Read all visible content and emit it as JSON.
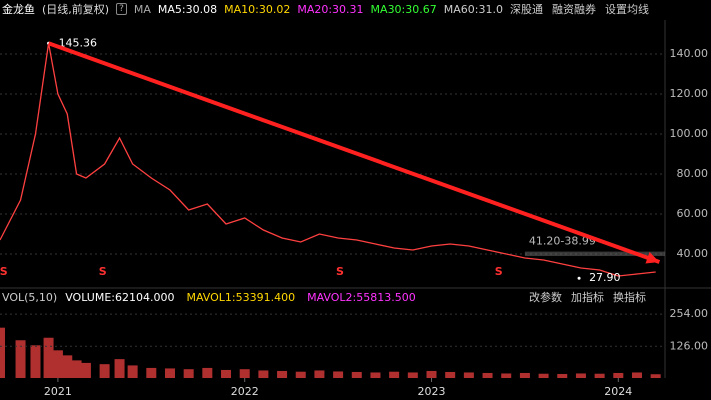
{
  "toolbar": {
    "stock": "金龙鱼",
    "mode": "(日线,前复权)",
    "help": "?",
    "ma_label": "MA",
    "ma_items": [
      {
        "text": "MA5:30.08",
        "color": "#ffffff"
      },
      {
        "text": "MA10:30.02",
        "color": "#ffd700"
      },
      {
        "text": "MA20:30.31",
        "color": "#ff33ff"
      },
      {
        "text": "MA30:30.67",
        "color": "#33ff33"
      },
      {
        "text": "MA60:31.0",
        "color": "#cccccc"
      }
    ],
    "buttons": [
      "深股通",
      "融资融券",
      "设置均线"
    ]
  },
  "chart_data": [
    {
      "type": "line",
      "xlim": [
        2020.69,
        2024.25
      ],
      "xticks": [
        2021,
        2022,
        2023,
        2024
      ],
      "ylim": [
        24.5,
        157
      ],
      "yticks": [
        {
          "value": 140,
          "label": "140.00"
        },
        {
          "value": 120,
          "label": "120.00"
        },
        {
          "value": 100,
          "label": "100.00"
        },
        {
          "value": 80,
          "label": "80.00"
        },
        {
          "value": 60,
          "label": "60.00"
        },
        {
          "value": 40,
          "label": "40.00"
        }
      ],
      "grid": true,
      "x": [
        2020.69,
        2020.8,
        2020.88,
        2020.95,
        2021.0,
        2021.05,
        2021.1,
        2021.15,
        2021.25,
        2021.33,
        2021.4,
        2021.5,
        2021.6,
        2021.7,
        2021.8,
        2021.9,
        2022.0,
        2022.1,
        2022.2,
        2022.3,
        2022.4,
        2022.5,
        2022.6,
        2022.7,
        2022.8,
        2022.9,
        2023.0,
        2023.1,
        2023.2,
        2023.3,
        2023.4,
        2023.5,
        2023.6,
        2023.7,
        2023.8,
        2023.9,
        2024.0,
        2024.1,
        2024.2
      ],
      "series": [
        {
          "color": "#ff4040",
          "values": [
            47,
            67,
            100,
            145.36,
            120,
            110,
            80,
            78,
            85,
            98,
            85,
            78,
            72,
            62,
            65,
            55,
            58,
            52,
            48,
            46,
            50,
            48,
            47,
            45,
            43,
            42,
            44,
            45,
            44,
            42,
            40,
            38,
            37,
            35,
            33,
            32,
            29,
            30,
            31
          ]
        }
      ],
      "annotations": [
        {
          "text": "145.36",
          "x": 2020.95,
          "y": 145.36
        },
        {
          "text": "27.90",
          "x": 2023.79,
          "y": 27.9
        }
      ],
      "range_band": {
        "label": "41.20-38.99",
        "high": 41.2,
        "low": 38.99,
        "x_start": 2023.5
      },
      "trend_arrow": {
        "color": "#ff2020",
        "x": [
          2020.95,
          2024.22
        ],
        "y": [
          145.36,
          36
        ]
      },
      "event_markers": [
        {
          "x": 2020.71,
          "label": "S"
        },
        {
          "x": 2021.24,
          "label": "S"
        },
        {
          "x": 2022.51,
          "label": "S"
        },
        {
          "x": 2023.36,
          "label": "S"
        }
      ]
    },
    {
      "type": "bar",
      "title": "VOL(5,10)",
      "ylim": [
        0,
        310
      ],
      "yticks": [
        {
          "value": 254,
          "label": "254.00"
        },
        {
          "value": 126,
          "label": "126.00"
        }
      ],
      "indicators": [
        {
          "text": "VOLUME:62104.000",
          "color": "#ffffff"
        },
        {
          "text": "MAVOL1:53391.400",
          "color": "#ffd700"
        },
        {
          "text": "MAVOL2:55813.500",
          "color": "#ff33ff"
        }
      ],
      "buttons": [
        "改参数",
        "加指标",
        "换指标"
      ],
      "color": "#b03030",
      "x": [
        2020.69,
        2020.8,
        2020.88,
        2020.95,
        2021.0,
        2021.05,
        2021.1,
        2021.15,
        2021.25,
        2021.33,
        2021.4,
        2021.5,
        2021.6,
        2021.7,
        2021.8,
        2021.9,
        2022.0,
        2022.1,
        2022.2,
        2022.3,
        2022.4,
        2022.5,
        2022.6,
        2022.7,
        2022.8,
        2022.9,
        2023.0,
        2023.1,
        2023.2,
        2023.3,
        2023.4,
        2023.5,
        2023.6,
        2023.7,
        2023.8,
        2023.9,
        2024.0,
        2024.1,
        2024.2
      ],
      "values": [
        200,
        150,
        130,
        160,
        110,
        90,
        70,
        60,
        55,
        75,
        50,
        40,
        38,
        35,
        40,
        32,
        35,
        30,
        28,
        25,
        30,
        26,
        24,
        22,
        25,
        22,
        28,
        24,
        22,
        20,
        18,
        20,
        17,
        16,
        18,
        17,
        20,
        22,
        15
      ]
    }
  ]
}
